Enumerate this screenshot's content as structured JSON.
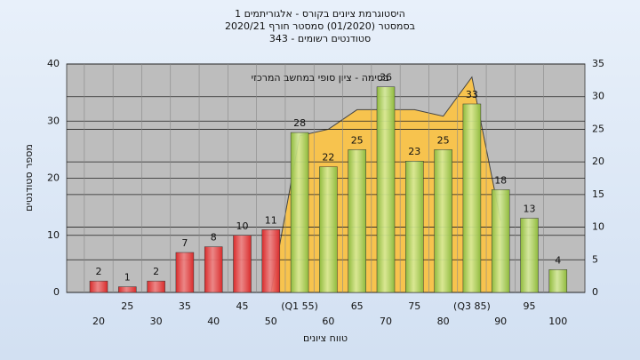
{
  "chart_data": {
    "type": "bar",
    "title": [
      "היסטוגרמת ציונים בקורס - אלגוריתמים 1",
      "בסמסטר  (01/2020)  סמסטר חורף  2020/21",
      "סטודנטים רשומים - 343"
    ],
    "annotation": "בסימה - ציון סופי במחשב המרכזי",
    "x_label": "טווח ציונים",
    "y_label": "מספר סטודנטים",
    "categories": [
      "20",
      "25",
      "30",
      "35",
      "40",
      "45",
      "50",
      "(Q1 55)",
      "60",
      "65",
      "70",
      "75",
      "80",
      "(Q3 85)",
      "90",
      "95",
      "100"
    ],
    "series": [
      {
        "values": [
          2,
          1,
          2,
          7,
          8,
          10,
          11,
          28,
          22,
          25,
          36,
          23,
          25,
          33,
          18,
          13,
          4
        ],
        "colors": [
          "#d92b2b",
          "#d92b2b",
          "#d92b2b",
          "#d92b2b",
          "#d92b2b",
          "#d92b2b",
          "#d92b2b",
          "#8fba3c",
          "#8fba3c",
          "#8fba3c",
          "#8fba3c",
          "#8fba3c",
          "#8fba3c",
          "#8fba3c",
          "#8fba3c",
          "#8fba3c",
          "#8fba3c"
        ]
      },
      {
        "type": "area",
        "axis": "y2",
        "color": "#f7c34e",
        "values": [
          null,
          null,
          null,
          null,
          null,
          null,
          0,
          24,
          25,
          28,
          28,
          28,
          27,
          33,
          11,
          null,
          null
        ]
      }
    ],
    "ylim": [
      0,
      40
    ],
    "yticks": [
      0,
      10,
      20,
      30,
      40
    ],
    "y2lim": [
      0,
      35
    ],
    "y2ticks": [
      0,
      5,
      10,
      15,
      20,
      25,
      30,
      35
    ],
    "grid": true
  }
}
